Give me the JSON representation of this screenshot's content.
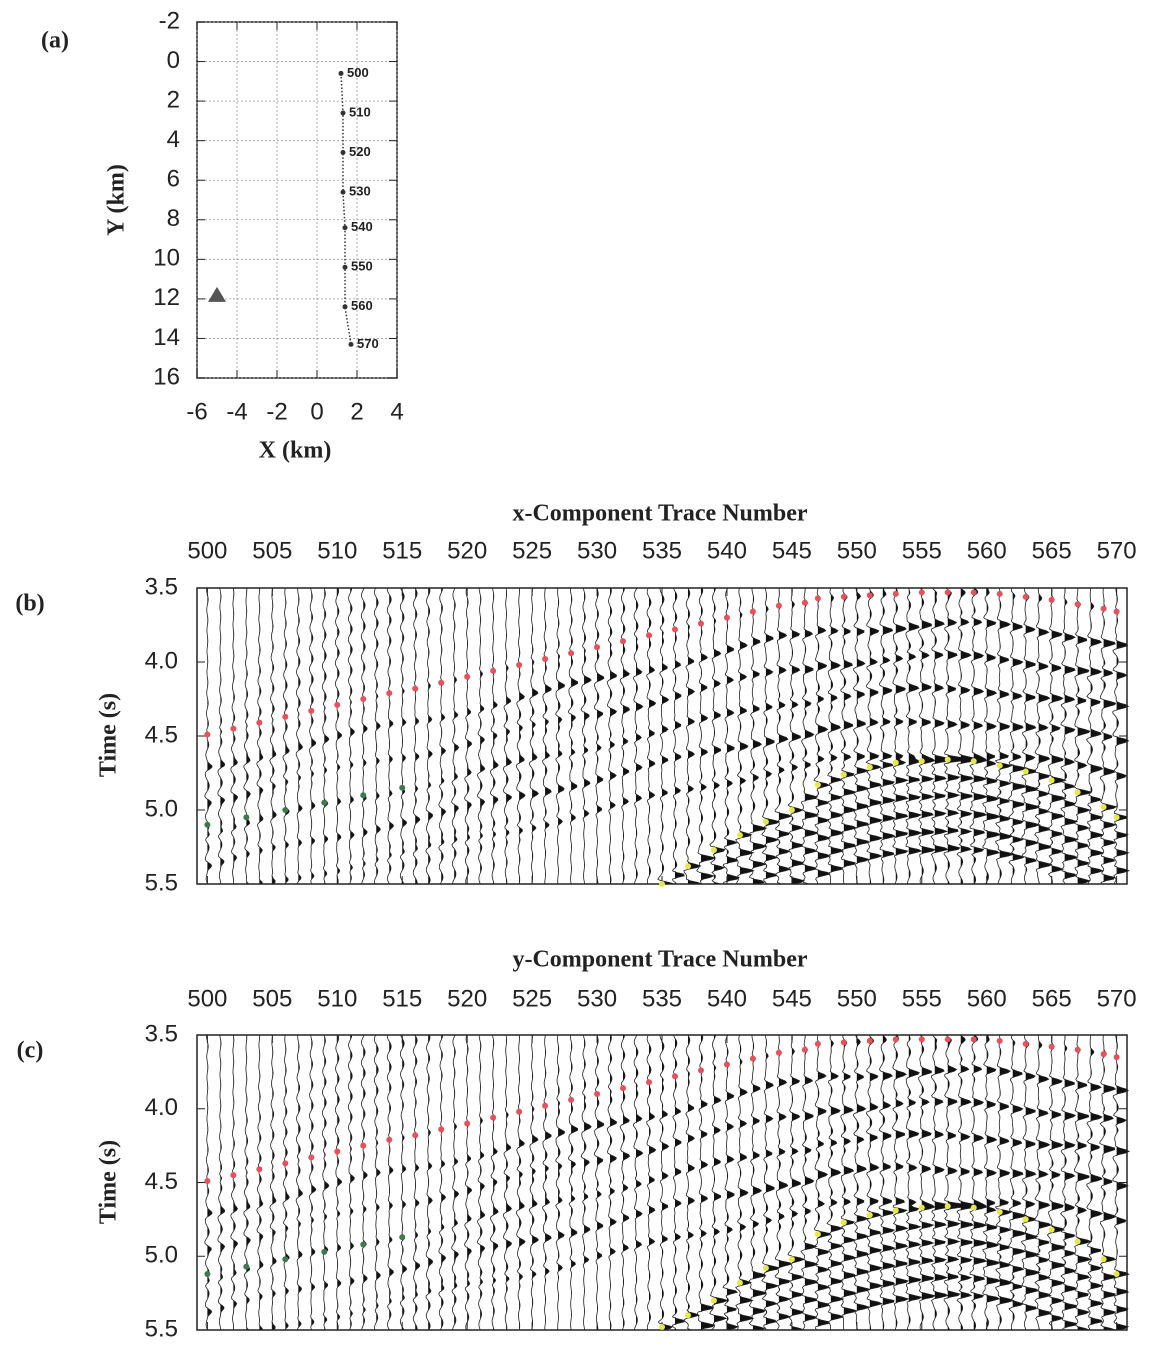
{
  "chart_data": [
    {
      "type": "scatter",
      "label": "(a)",
      "xlabel": "X (km)",
      "ylabel": "Y (km)",
      "xlim": [
        -6,
        4
      ],
      "ylim": [
        16,
        -2
      ],
      "xticks": [
        -6,
        -4,
        -2,
        0,
        2,
        4
      ],
      "yticks": [
        16,
        14,
        12,
        10,
        8,
        6,
        4,
        2,
        0,
        -2
      ],
      "grid": true,
      "series": [
        {
          "color": "#333333",
          "line": true,
          "x": [
            1.2,
            1.3,
            1.3,
            1.3,
            1.4,
            1.4,
            1.4,
            1.7
          ],
          "values": [
            0.6,
            2.6,
            4.6,
            6.6,
            8.4,
            10.4,
            12.4,
            14.3
          ],
          "point_labels": [
            500,
            510,
            520,
            530,
            540,
            550,
            560,
            570
          ]
        },
        {
          "color": "#555555",
          "marker": "triangle",
          "x": [
            -5.0
          ],
          "values": [
            11.8
          ]
        }
      ]
    },
    {
      "type": "wiggle",
      "label": "(b)",
      "title": "x-Component Trace Number",
      "ylabel": "Time (s)",
      "xlim": [
        499.2,
        570.8
      ],
      "ylim": [
        5.5,
        3.5
      ],
      "xticks": [
        500,
        505,
        510,
        515,
        520,
        525,
        530,
        535,
        540,
        545,
        550,
        555,
        560,
        565,
        570
      ],
      "yticks": [
        {
          "value": 5.5,
          "label": "5.5"
        },
        {
          "value": 5,
          "label": "5.0"
        },
        4.5,
        {
          "value": 4,
          "label": "4.0"
        },
        3.5
      ],
      "series": [
        {
          "color": "#e8505b",
          "x": [
            500,
            502,
            504,
            506,
            508,
            510,
            512,
            514,
            516,
            518,
            520,
            522,
            524,
            526,
            528,
            530,
            532,
            534,
            536,
            538,
            540,
            542,
            544,
            546,
            547,
            549,
            551,
            553,
            555,
            557,
            559,
            561,
            563,
            565,
            567,
            569,
            570
          ],
          "values": [
            4.49,
            4.45,
            4.41,
            4.37,
            4.33,
            4.29,
            4.25,
            4.21,
            4.18,
            4.14,
            4.1,
            4.06,
            4.02,
            3.98,
            3.94,
            3.9,
            3.86,
            3.82,
            3.78,
            3.74,
            3.7,
            3.66,
            3.62,
            3.6,
            3.57,
            3.56,
            3.55,
            3.54,
            3.53,
            3.53,
            3.53,
            3.54,
            3.56,
            3.58,
            3.61,
            3.64,
            3.66
          ]
        },
        {
          "color": "#e6e84a",
          "x": [
            535,
            537,
            539,
            541,
            543,
            545,
            547,
            549,
            551,
            553,
            555,
            557,
            559,
            561,
            563,
            565,
            567,
            569,
            570
          ],
          "values": [
            5.5,
            5.38,
            5.27,
            5.17,
            5.08,
            5.0,
            4.83,
            4.76,
            4.71,
            4.68,
            4.67,
            4.66,
            4.67,
            4.7,
            4.74,
            4.8,
            4.88,
            4.98,
            5.05
          ]
        },
        {
          "color": "#3e7a4a",
          "x": [
            500,
            503,
            506,
            509,
            512,
            515
          ],
          "values": [
            5.1,
            5.05,
            5.0,
            4.95,
            4.9,
            4.85
          ]
        }
      ]
    },
    {
      "type": "wiggle",
      "label": "(c)",
      "title": "y-Component Trace Number",
      "ylabel": "Time (s)",
      "xlim": [
        499.2,
        570.8
      ],
      "ylim": [
        5.5,
        3.5
      ],
      "xticks": [
        500,
        505,
        510,
        515,
        520,
        525,
        530,
        535,
        540,
        545,
        550,
        555,
        560,
        565,
        570
      ],
      "yticks": [
        {
          "value": 5.5,
          "label": "5.5"
        },
        {
          "value": 5,
          "label": "5.0"
        },
        4.5,
        {
          "value": 4,
          "label": "4.0"
        },
        3.5
      ],
      "series": [
        {
          "color": "#e8505b",
          "x": [
            500,
            502,
            504,
            506,
            508,
            510,
            512,
            514,
            516,
            518,
            520,
            522,
            524,
            526,
            528,
            530,
            532,
            534,
            536,
            538,
            540,
            542,
            544,
            546,
            547,
            549,
            551,
            553,
            555,
            557,
            559,
            561,
            563,
            565,
            567,
            569,
            570
          ],
          "values": [
            4.49,
            4.45,
            4.41,
            4.37,
            4.33,
            4.29,
            4.25,
            4.21,
            4.18,
            4.14,
            4.1,
            4.06,
            4.02,
            3.98,
            3.94,
            3.9,
            3.86,
            3.82,
            3.78,
            3.74,
            3.7,
            3.66,
            3.62,
            3.6,
            3.56,
            3.55,
            3.54,
            3.53,
            3.53,
            3.53,
            3.53,
            3.54,
            3.56,
            3.58,
            3.6,
            3.63,
            3.65
          ]
        },
        {
          "color": "#e6e84a",
          "x": [
            535,
            537,
            539,
            541,
            543,
            545,
            547,
            549,
            551,
            553,
            555,
            557,
            559,
            561,
            563,
            565,
            567,
            569,
            570
          ],
          "values": [
            5.48,
            5.4,
            5.3,
            5.18,
            5.08,
            5.02,
            4.85,
            4.77,
            4.72,
            4.69,
            4.67,
            4.66,
            4.67,
            4.7,
            4.75,
            4.82,
            4.9,
            5.02,
            5.12
          ]
        },
        {
          "color": "#3e7a4a",
          "x": [
            500,
            503,
            506,
            509,
            512,
            515
          ],
          "values": [
            5.12,
            5.07,
            5.02,
            4.97,
            4.92,
            4.87
          ]
        }
      ]
    }
  ]
}
